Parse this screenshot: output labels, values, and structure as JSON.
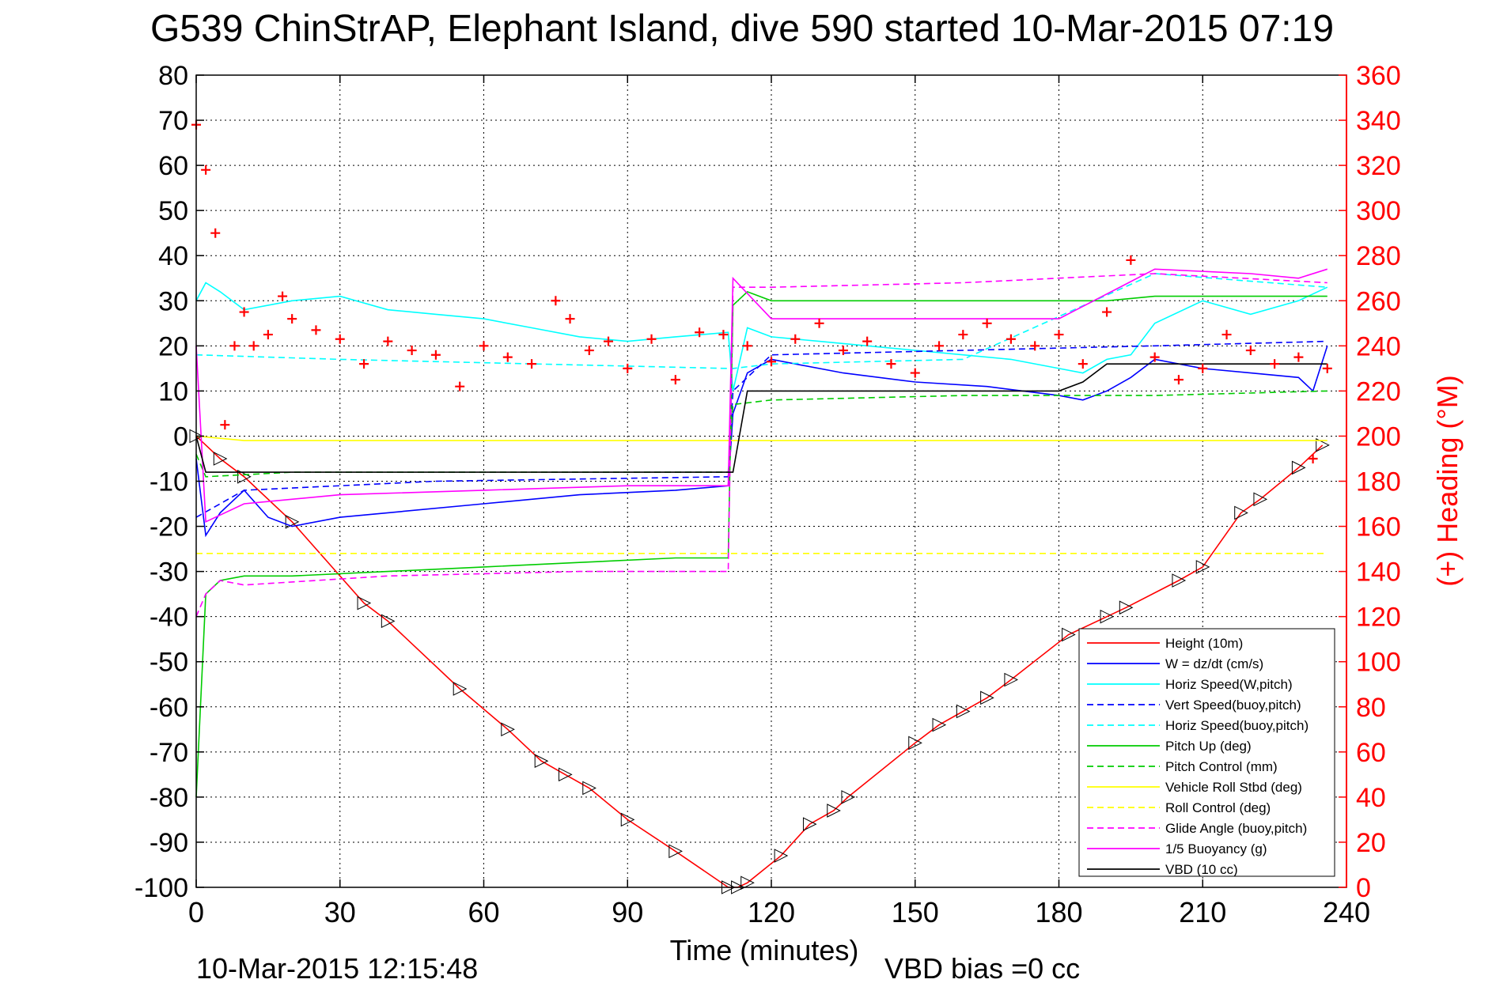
{
  "chart_data": {
    "type": "line",
    "title": "G539 ChinStrAP, Elephant Island, dive 590 started 10-Mar-2015 07:19",
    "xlabel": "Time (minutes)",
    "ylabel_right": "(+) Heading (°M)",
    "xlim": [
      0,
      240
    ],
    "ylim": [
      -100,
      80
    ],
    "y2lim": [
      0,
      360
    ],
    "x_ticks": [
      "0",
      "30",
      "60",
      "90",
      "120",
      "150",
      "180",
      "210",
      "240"
    ],
    "y_ticks": [
      "80",
      "70",
      "60",
      "50",
      "40",
      "30",
      "20",
      "10",
      "0",
      "-10",
      "-20",
      "-30",
      "-40",
      "-50",
      "-60",
      "-70",
      "-80",
      "-90",
      "-100"
    ],
    "y2_ticks": [
      "360",
      "340",
      "320",
      "300",
      "280",
      "260",
      "240",
      "220",
      "200",
      "180",
      "160",
      "140",
      "120",
      "100",
      "80",
      "60",
      "40",
      "20",
      "0"
    ],
    "grid": true,
    "legend_position": "bottom-right",
    "footer_left": "10-Mar-2015 12:15:48",
    "footer_right": "VBD bias =0 cc",
    "colors": {
      "red": "#ff0000",
      "blue": "#0000ff",
      "cyan": "#00ffff",
      "green": "#00cc00",
      "yellow": "#ffff00",
      "magenta": "#ff00ff",
      "black": "#000000"
    },
    "legend": [
      {
        "name": "Height (10m)",
        "color": "#ff0000",
        "dash": "solid"
      },
      {
        "name": "W = dz/dt (cm/s)",
        "color": "#0000ff",
        "dash": "solid"
      },
      {
        "name": "Horiz Speed(W,pitch)",
        "color": "#00ffff",
        "dash": "solid"
      },
      {
        "name": "Vert Speed(buoy,pitch)",
        "color": "#0000ff",
        "dash": "dashed"
      },
      {
        "name": "Horiz Speed(buoy,pitch)",
        "color": "#00ffff",
        "dash": "dashed"
      },
      {
        "name": "Pitch Up (deg)",
        "color": "#00cc00",
        "dash": "solid"
      },
      {
        "name": "Pitch Control (mm)",
        "color": "#00cc00",
        "dash": "dashed"
      },
      {
        "name": "Vehicle Roll Stbd (deg)",
        "color": "#ffff00",
        "dash": "solid"
      },
      {
        "name": "Roll Control (deg)",
        "color": "#ffff00",
        "dash": "dashed"
      },
      {
        "name": "Glide Angle (buoy,pitch)",
        "color": "#ff00ff",
        "dash": "dashed"
      },
      {
        "name": "1/5 Buoyancy (g)",
        "color": "#ff00ff",
        "dash": "solid"
      },
      {
        "name": "VBD (10 cc)",
        "color": "#000000",
        "dash": "solid"
      }
    ],
    "series": [
      {
        "name": "Height (10m)",
        "color": "#ff0000",
        "dash": "solid",
        "x": [
          0,
          5,
          10,
          20,
          35,
          40,
          55,
          65,
          72,
          77,
          82,
          90,
          100,
          111,
          113,
          115,
          122,
          128,
          133,
          136,
          150,
          155,
          160,
          165,
          170,
          182,
          190,
          194,
          205,
          210,
          218,
          222,
          230,
          235
        ],
        "y": [
          0,
          -5,
          -9,
          -19,
          -37,
          -41,
          -56,
          -65,
          -72,
          -75,
          -78,
          -85,
          -92,
          -100,
          -100,
          -99,
          -93,
          -86,
          -83,
          -80,
          -68,
          -64,
          -61,
          -58,
          -54,
          -44,
          -40,
          -38,
          -32,
          -29,
          -17,
          -14,
          -7,
          -2
        ]
      },
      {
        "name": "W = dz/dt (cm/s)",
        "color": "#0000ff",
        "dash": "solid",
        "x": [
          0,
          2,
          5,
          10,
          15,
          20,
          30,
          40,
          60,
          80,
          100,
          111,
          112,
          115,
          120,
          125,
          135,
          150,
          165,
          180,
          185,
          190,
          195,
          200,
          210,
          220,
          230,
          233,
          236
        ],
        "y": [
          -5,
          -22,
          -17,
          -12,
          -18,
          -20,
          -18,
          -17,
          -15,
          -13,
          -12,
          -11,
          5,
          14,
          17,
          16,
          14,
          12,
          11,
          9,
          8,
          10,
          13,
          17,
          15,
          14,
          13,
          10,
          20
        ]
      },
      {
        "name": "Horiz Speed(W,pitch)",
        "color": "#00ffff",
        "dash": "solid",
        "x": [
          0,
          2,
          5,
          10,
          20,
          30,
          40,
          50,
          60,
          70,
          80,
          90,
          100,
          111,
          112,
          115,
          120,
          130,
          140,
          150,
          160,
          170,
          180,
          185,
          190,
          195,
          200,
          210,
          220,
          230,
          236
        ],
        "y": [
          30,
          34,
          32,
          28,
          30,
          31,
          28,
          27,
          26,
          24,
          22,
          21,
          22,
          23,
          10,
          24,
          22,
          21,
          20,
          19,
          18,
          17,
          15,
          14,
          17,
          18,
          25,
          30,
          27,
          30,
          33
        ]
      },
      {
        "name": "Vert Speed(buoy,pitch)",
        "color": "#0000ff",
        "dash": "dashed",
        "x": [
          0,
          10,
          50,
          111,
          112,
          120,
          160,
          200,
          236
        ],
        "y": [
          -18,
          -12,
          -10,
          -9,
          10,
          18,
          19,
          20,
          21
        ]
      },
      {
        "name": "Horiz Speed(buoy,pitch)",
        "color": "#00ffff",
        "dash": "dashed",
        "x": [
          0,
          30,
          111,
          112,
          120,
          160,
          200,
          236
        ],
        "y": [
          18,
          17,
          15,
          15,
          16,
          17,
          36,
          33
        ]
      },
      {
        "name": "Pitch Up (deg)",
        "color": "#00cc00",
        "dash": "solid",
        "x": [
          0,
          2,
          5,
          10,
          20,
          40,
          60,
          80,
          100,
          111,
          112,
          115,
          120,
          140,
          160,
          180,
          190,
          200,
          220,
          236
        ],
        "y": [
          -80,
          -35,
          -32,
          -31,
          -31,
          -30,
          -29,
          -28,
          -27,
          -27,
          29,
          32,
          30,
          30,
          30,
          30,
          30,
          31,
          31,
          31
        ]
      },
      {
        "name": "Pitch Control (mm)",
        "color": "#00cc00",
        "dash": "dashed",
        "x": [
          0,
          2,
          20,
          60,
          111,
          112,
          120,
          160,
          200,
          236
        ],
        "y": [
          -4,
          -9,
          -8,
          -8,
          -8,
          7,
          8,
          9,
          9,
          10
        ]
      },
      {
        "name": "Vehicle Roll Stbd (deg)",
        "color": "#ffff00",
        "dash": "solid",
        "x": [
          0,
          10,
          30,
          60,
          90,
          111,
          112,
          140,
          180,
          200,
          236
        ],
        "y": [
          0,
          -1,
          -1,
          -1,
          -1,
          -1,
          -1,
          -1,
          -1,
          -1,
          -1
        ]
      },
      {
        "name": "Roll Control (deg)",
        "color": "#ffff00",
        "dash": "dashed",
        "x": [
          0,
          20,
          60,
          111,
          112,
          180,
          236
        ],
        "y": [
          -26,
          -26,
          -26,
          -26,
          -26,
          -26,
          -26
        ]
      },
      {
        "name": "Glide Angle (buoy,pitch)",
        "color": "#ff00ff",
        "dash": "dashed",
        "x": [
          0,
          2,
          5,
          10,
          40,
          80,
          111,
          112,
          120,
          160,
          200,
          236
        ],
        "y": [
          -40,
          -35,
          -32,
          -33,
          -31,
          -30,
          -30,
          33,
          33,
          34,
          36,
          34
        ]
      },
      {
        "name": "1/5 Buoyancy (g)",
        "color": "#ff00ff",
        "dash": "solid",
        "x": [
          0,
          2,
          10,
          30,
          60,
          90,
          111,
          112,
          120,
          150,
          180,
          200,
          220,
          230,
          236
        ],
        "y": [
          20,
          -19,
          -15,
          -13,
          -12,
          -11,
          -11,
          35,
          26,
          26,
          26,
          37,
          36,
          35,
          37
        ]
      },
      {
        "name": "VBD (10 cc)",
        "color": "#000000",
        "dash": "solid",
        "x": [
          0,
          2,
          111,
          112,
          115,
          180,
          185,
          190,
          236
        ],
        "y": [
          0,
          -8,
          -8,
          -8,
          10,
          10,
          12,
          16,
          16
        ]
      },
      {
        "name": "Heading",
        "color": "#ff0000",
        "marker": "+",
        "axis": "right",
        "x": [
          0,
          2,
          4,
          6,
          8,
          10,
          12,
          15,
          18,
          20,
          25,
          30,
          35,
          40,
          45,
          50,
          55,
          60,
          65,
          70,
          75,
          78,
          82,
          86,
          90,
          95,
          100,
          105,
          110,
          115,
          120,
          125,
          130,
          135,
          140,
          145,
          150,
          155,
          160,
          165,
          170,
          175,
          180,
          185,
          190,
          195,
          200,
          205,
          210,
          215,
          220,
          225,
          230,
          233,
          236
        ],
        "y": [
          338,
          318,
          290,
          205,
          240,
          255,
          240,
          245,
          262,
          252,
          247,
          243,
          232,
          242,
          238,
          236,
          222,
          240,
          235,
          232,
          260,
          252,
          238,
          242,
          230,
          243,
          225,
          246,
          245,
          240,
          233,
          243,
          250,
          238,
          242,
          232,
          228,
          240,
          245,
          250,
          243,
          240,
          245,
          232,
          255,
          278,
          235,
          225,
          230,
          245,
          238,
          232,
          235,
          190,
          230
        ]
      }
    ]
  }
}
